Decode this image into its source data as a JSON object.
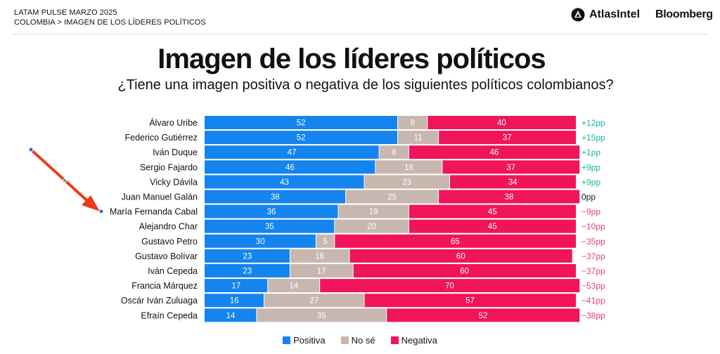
{
  "header": {
    "line1": "LATAM PULSE MARZO 2025",
    "line2": "COLOMBIA > IMAGEN DE LOS LÍDERES POLÍTICOS",
    "brand_atlas": "AtlasIntel",
    "brand_bloomberg": "Bloomberg"
  },
  "colors": {
    "positive": "#1484ef",
    "unsure": "#c8b7ae",
    "negative": "#f0145a",
    "net_positive": "#19b5a5",
    "net_negative": "#e24270",
    "net_zero": "#111111",
    "arrow": "#ee3a1c"
  },
  "chart_data": {
    "type": "bar",
    "stacked": true,
    "orientation": "horizontal",
    "title": "Imagen de los líderes políticos",
    "subtitle": "¿Tiene una imagen positiva o negativa de los siguientes políticos colombianos?",
    "xlim": [
      0,
      100
    ],
    "categories": [
      "Álvaro Uribe",
      "Federico Gutiérrez",
      "Iván Duque",
      "Sergio Fajardo",
      "Vicky Dávila",
      "Juan Manuel Galán",
      "María Fernanda Cabal",
      "Alejandro Char",
      "Gustavo Petro",
      "Gustavo Bolívar",
      "Iván Cepeda",
      "Francia Márquez",
      "Oscár Iván Zuluaga",
      "Efraín Cepeda"
    ],
    "series": [
      {
        "name": "Positiva",
        "values": [
          52,
          52,
          47,
          46,
          43,
          38,
          36,
          35,
          30,
          23,
          23,
          17,
          16,
          14
        ]
      },
      {
        "name": "No sé",
        "values": [
          8,
          11,
          8,
          18,
          23,
          25,
          19,
          20,
          5,
          16,
          17,
          14,
          27,
          35
        ]
      },
      {
        "name": "Negativa",
        "values": [
          40,
          37,
          46,
          37,
          34,
          38,
          45,
          45,
          65,
          60,
          60,
          70,
          57,
          52
        ]
      }
    ],
    "net_labels": [
      "+12pp",
      "+15pp",
      "+1pp",
      "+9pp",
      "+9pp",
      "0pp",
      "-9pp",
      "-10pp",
      "-35pp",
      "-37pp",
      "-37pp",
      "-53pp",
      "-41pp",
      "-38pp"
    ],
    "legend_position": "bottom-center",
    "annotation": {
      "type": "arrow",
      "target": "María Fernanda Cabal"
    }
  }
}
